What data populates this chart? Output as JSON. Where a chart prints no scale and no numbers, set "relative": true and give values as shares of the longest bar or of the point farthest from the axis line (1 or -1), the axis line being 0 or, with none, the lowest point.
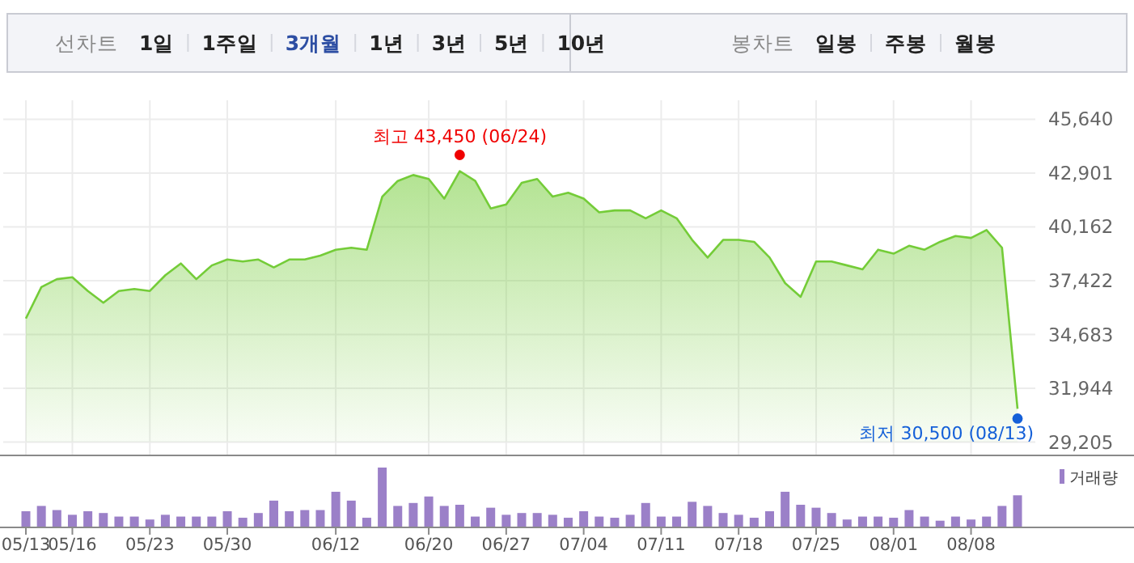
{
  "chart_data": [
    {
      "type": "other",
      "annotations": [
        "선차트",
        "1일",
        "1주일",
        "3개월",
        "1년",
        "3년",
        "5년",
        "10년",
        "봉차트",
        "일봉",
        "주봉",
        "월봉"
      ]
    },
    {
      "type": "area",
      "categories": [
        "05/13",
        null,
        null,
        "05/16",
        null,
        null,
        null,
        null,
        "05/23",
        null,
        null,
        null,
        null,
        "05/30",
        null,
        null,
        null,
        null,
        null,
        null,
        "06/12",
        null,
        null,
        null,
        null,
        null,
        "06/20",
        null,
        null,
        null,
        null,
        "06/27",
        null,
        null,
        null,
        null,
        "07/04",
        null,
        null,
        null,
        null,
        "07/11",
        null,
        null,
        null,
        null,
        "07/18",
        null,
        null,
        null,
        null,
        "07/25",
        null,
        null,
        null,
        null,
        "08/01",
        null,
        null,
        null,
        null,
        "08/08",
        null,
        null,
        null
      ],
      "values": [
        35500,
        37100,
        37500,
        37600,
        36900,
        36300,
        36900,
        37000,
        36900,
        37700,
        38300,
        37500,
        38200,
        38500,
        38400,
        38500,
        38100,
        38500,
        38500,
        38700,
        39000,
        39100,
        39000,
        41700,
        42500,
        42800,
        42600,
        41600,
        43000,
        42500,
        41100,
        41300,
        42400,
        42600,
        41700,
        41900,
        41600,
        40900,
        41000,
        41000,
        40600,
        41000,
        40600,
        39500,
        38600,
        39500,
        39500,
        39400,
        38600,
        37300,
        36600,
        38400,
        38400,
        38200,
        38000,
        39000,
        38800,
        39200,
        39000,
        39400,
        39700,
        39600,
        40000,
        39100,
        30900
      ],
      "color": "#74cc38",
      "ylim": [
        29205,
        45640
      ],
      "yticks": [
        {
          "value": 29205,
          "label": "29,205"
        },
        {
          "value": 31944,
          "label": "31,944"
        },
        {
          "value": 34683,
          "label": "34,683"
        },
        {
          "value": 37422,
          "label": "37,422"
        },
        {
          "value": 40162,
          "label": "40,162"
        },
        {
          "value": 42901,
          "label": "42,901"
        },
        {
          "value": 45640,
          "label": "45,640"
        }
      ],
      "grid": true,
      "annotations": [
        "최고 43,450 (06/24)",
        "최저 30,500 (08/13)"
      ]
    },
    {
      "type": "bar",
      "categories": [
        null,
        null,
        null,
        null,
        null,
        null,
        null,
        null,
        null,
        null,
        null,
        null,
        null,
        null,
        null,
        null,
        null,
        null,
        null,
        null,
        null,
        null,
        null,
        null,
        null,
        null,
        null,
        null,
        null,
        null,
        null,
        null,
        null,
        null,
        null,
        null,
        null,
        null,
        null,
        null,
        null,
        null,
        null,
        null,
        null,
        null,
        null,
        null,
        null,
        null,
        null,
        null,
        null,
        null,
        null,
        null,
        null,
        null,
        null,
        null,
        null,
        null,
        null,
        null,
        null
      ],
      "series": [
        {
          "name": "거래량",
          "color": "#9b80c8",
          "values": [
            0.26,
            0.35,
            0.28,
            0.2,
            0.26,
            0.23,
            0.17,
            0.17,
            0.12,
            0.2,
            0.17,
            0.17,
            0.17,
            0.26,
            0.15,
            0.23,
            0.44,
            0.26,
            0.28,
            0.28,
            0.59,
            0.44,
            0.15,
            1,
            0.35,
            0.4,
            0.51,
            0.35,
            0.37,
            0.17,
            0.32,
            0.2,
            0.23,
            0.23,
            0.2,
            0.15,
            0.26,
            0.17,
            0.15,
            0.2,
            0.4,
            0.17,
            0.17,
            0.42,
            0.35,
            0.23,
            0.2,
            0.15,
            0.26,
            0.59,
            0.37,
            0.32,
            0.23,
            0.12,
            0.17,
            0.17,
            0.15,
            0.28,
            0.17,
            0.1,
            0.17,
            0.12,
            0.17,
            0.35,
            0.53
          ]
        }
      ],
      "relative": true,
      "legend": "top right"
    }
  ]
}
